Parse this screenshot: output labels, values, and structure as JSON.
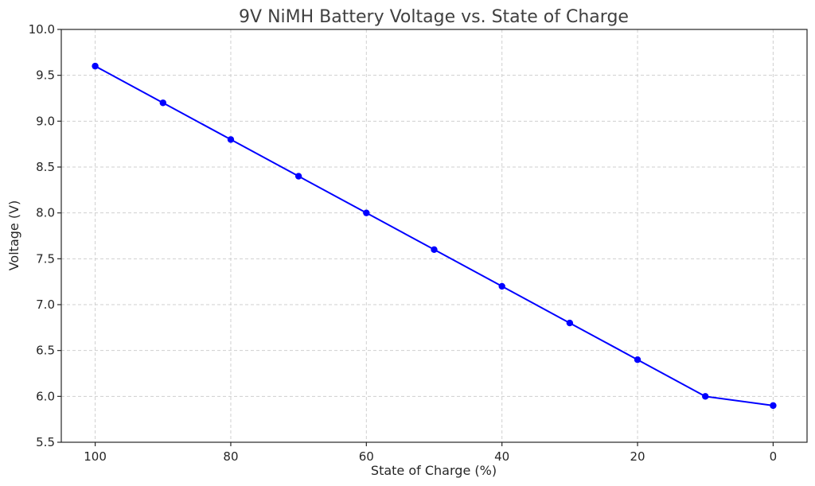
{
  "chart_data": {
    "type": "line",
    "title": "9V NiMH Battery Voltage vs. State of Charge",
    "xlabel": "State of Charge (%)",
    "ylabel": "Voltage (V)",
    "x_reversed": true,
    "xlim": [
      105,
      -5
    ],
    "ylim": [
      5.5,
      10.0
    ],
    "x_ticks": [
      100,
      80,
      60,
      40,
      20,
      0
    ],
    "y_ticks": [
      "5.5",
      "6.0",
      "6.5",
      "7.0",
      "7.5",
      "8.0",
      "8.5",
      "9.0",
      "9.5",
      "10.0"
    ],
    "grid": true,
    "series": [
      {
        "color": "#0000ff",
        "marker": "circle",
        "x": [
          100,
          90,
          80,
          70,
          60,
          50,
          40,
          30,
          20,
          10,
          0
        ],
        "y": [
          9.6,
          9.2,
          8.8,
          8.4,
          8.0,
          7.6,
          7.2,
          6.8,
          6.4,
          6.0,
          5.9
        ]
      }
    ]
  }
}
